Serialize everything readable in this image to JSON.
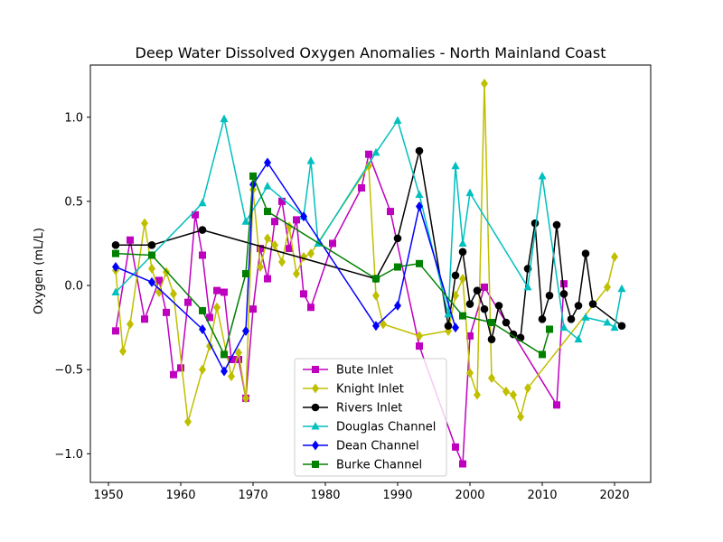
{
  "chart_data": {
    "type": "line",
    "title": "Deep Water Dissolved Oxygen Anomalies - North Mainland Coast",
    "xlabel": "",
    "ylabel": "Oxygen (mL/L)",
    "xlim": [
      1947.5,
      2025
    ],
    "ylim": [
      -1.17,
      1.31
    ],
    "xticks": [
      1950,
      1960,
      1970,
      1980,
      1990,
      2000,
      2010,
      2020
    ],
    "yticks": [
      -1.0,
      -0.5,
      0.0,
      0.5,
      1.0
    ],
    "ytick_labels": [
      "−1.0",
      "−0.5",
      "0.0",
      "0.5",
      "1.0"
    ],
    "grid": false,
    "legend_position": "lower center",
    "series": [
      {
        "name": "Bute Inlet",
        "color": "#bf00bf",
        "marker": "square",
        "x": [
          1951,
          1953,
          1955,
          1957,
          1958,
          1959,
          1960,
          1961,
          1962,
          1963,
          1964,
          1965,
          1966,
          1967,
          1968,
          1969,
          1970,
          1971,
          1972,
          1973,
          1974,
          1975,
          1976,
          1977,
          1978,
          1981,
          1985,
          1986,
          1989,
          1993,
          1998,
          1999,
          2000,
          2002,
          2012,
          2013
        ],
        "y": [
          -0.27,
          0.27,
          -0.2,
          0.03,
          -0.16,
          -0.53,
          -0.49,
          -0.1,
          0.42,
          0.18,
          -0.19,
          -0.03,
          -0.04,
          -0.44,
          -0.44,
          -0.67,
          -0.14,
          0.22,
          0.04,
          0.38,
          0.5,
          0.22,
          0.39,
          -0.05,
          -0.13,
          0.25,
          0.58,
          0.78,
          0.44,
          -0.36,
          -0.96,
          -1.06,
          -0.3,
          -0.01,
          -0.71,
          0.01
        ]
      },
      {
        "name": "Knight Inlet",
        "color": "#bfbf00",
        "marker": "diamond",
        "x": [
          1951,
          1952,
          1953,
          1955,
          1956,
          1957,
          1958,
          1959,
          1961,
          1963,
          1964,
          1965,
          1967,
          1968,
          1969,
          1970,
          1971,
          1972,
          1973,
          1974,
          1975,
          1976,
          1977,
          1978,
          1986,
          1987,
          1988,
          1993,
          1997,
          1998,
          1999,
          2000,
          2001,
          2002,
          2003,
          2005,
          2006,
          2007,
          2008,
          2019,
          2020
        ],
        "y": [
          0.09,
          -0.39,
          -0.23,
          0.37,
          0.1,
          -0.04,
          0.08,
          -0.05,
          -0.81,
          -0.5,
          -0.36,
          -0.13,
          -0.54,
          -0.4,
          -0.67,
          0.57,
          0.11,
          0.28,
          0.24,
          0.14,
          0.35,
          0.07,
          0.17,
          0.19,
          0.71,
          -0.06,
          -0.23,
          -0.3,
          -0.27,
          -0.06,
          0.04,
          -0.52,
          -0.65,
          1.2,
          -0.55,
          -0.63,
          -0.65,
          -0.78,
          -0.61,
          -0.01,
          0.17
        ]
      },
      {
        "name": "Rivers Inlet",
        "color": "#000000",
        "marker": "circle",
        "x": [
          1951,
          1956,
          1963,
          1987,
          1990,
          1993,
          1997,
          1998,
          1999,
          2000,
          2001,
          2002,
          2003,
          2004,
          2005,
          2006,
          2007,
          2008,
          2009,
          2010,
          2011,
          2012,
          2013,
          2014,
          2015,
          2016,
          2017,
          2021
        ],
        "y": [
          0.24,
          0.24,
          0.33,
          0.04,
          0.28,
          0.8,
          -0.24,
          0.06,
          0.2,
          -0.11,
          -0.03,
          -0.14,
          -0.32,
          -0.12,
          -0.22,
          -0.29,
          -0.31,
          0.1,
          0.37,
          -0.2,
          -0.06,
          0.36,
          -0.05,
          -0.2,
          -0.12,
          0.19,
          -0.11,
          -0.24
        ]
      },
      {
        "name": "Douglas Channel",
        "color": "#00bfbf",
        "marker": "triangle",
        "x": [
          1951,
          1956,
          1963,
          1966,
          1969,
          1972,
          1977,
          1978,
          1979,
          1987,
          1990,
          1993,
          1997,
          1998,
          1999,
          2000,
          2008,
          2010,
          2013,
          2015,
          2016,
          2019,
          2020,
          2021
        ],
        "y": [
          -0.04,
          0.18,
          0.49,
          0.99,
          0.38,
          0.59,
          0.41,
          0.74,
          0.25,
          0.79,
          0.98,
          0.54,
          -0.17,
          0.71,
          0.25,
          0.55,
          -0.01,
          0.65,
          -0.25,
          -0.32,
          -0.19,
          -0.22,
          -0.25,
          -0.02
        ]
      },
      {
        "name": "Dean Channel",
        "color": "#0000ff",
        "marker": "diamond",
        "x": [
          1951,
          1956,
          1963,
          1966,
          1969,
          1970,
          1972,
          1977,
          1987,
          1990,
          1993,
          1998
        ],
        "y": [
          0.11,
          0.02,
          -0.26,
          -0.51,
          -0.27,
          0.6,
          0.73,
          0.41,
          -0.24,
          -0.12,
          0.47,
          -0.25
        ]
      },
      {
        "name": "Burke Channel",
        "color": "#008000",
        "marker": "square",
        "x": [
          1951,
          1956,
          1963,
          1966,
          1969,
          1970,
          1972,
          1987,
          1990,
          1993,
          1999,
          2003,
          2010,
          2011
        ],
        "y": [
          0.19,
          0.18,
          -0.15,
          -0.41,
          0.07,
          0.65,
          0.44,
          0.04,
          0.11,
          0.13,
          -0.18,
          -0.22,
          -0.41,
          -0.26
        ]
      }
    ]
  }
}
